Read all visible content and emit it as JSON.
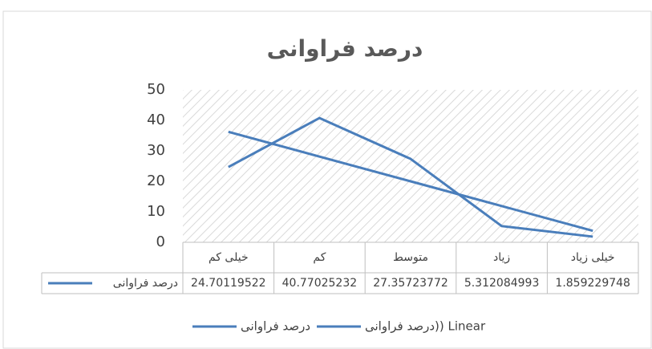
{
  "chart_data": {
    "type": "line",
    "title": "درصد فراوانی",
    "categories": [
      "خیلی کم",
      "کم",
      "متوسط",
      "زیاد",
      "خیلی زیاد"
    ],
    "series": [
      {
        "name": "درصد فراوانی",
        "color": "#4a7ebb",
        "values": [
          24.70119522,
          40.77025232,
          27.35723772,
          5.312084993,
          1.859229748
        ]
      },
      {
        "name": "درصد فراوانی)) Linear",
        "color": "#4a7ebb",
        "values": [
          36.23,
          28.11,
          20.0,
          11.89,
          3.77
        ]
      }
    ],
    "ylim": [
      0,
      50
    ],
    "yticks": [
      0,
      10,
      20,
      30,
      40,
      50
    ],
    "grid": false,
    "data_table": true,
    "legend": "bottom"
  }
}
